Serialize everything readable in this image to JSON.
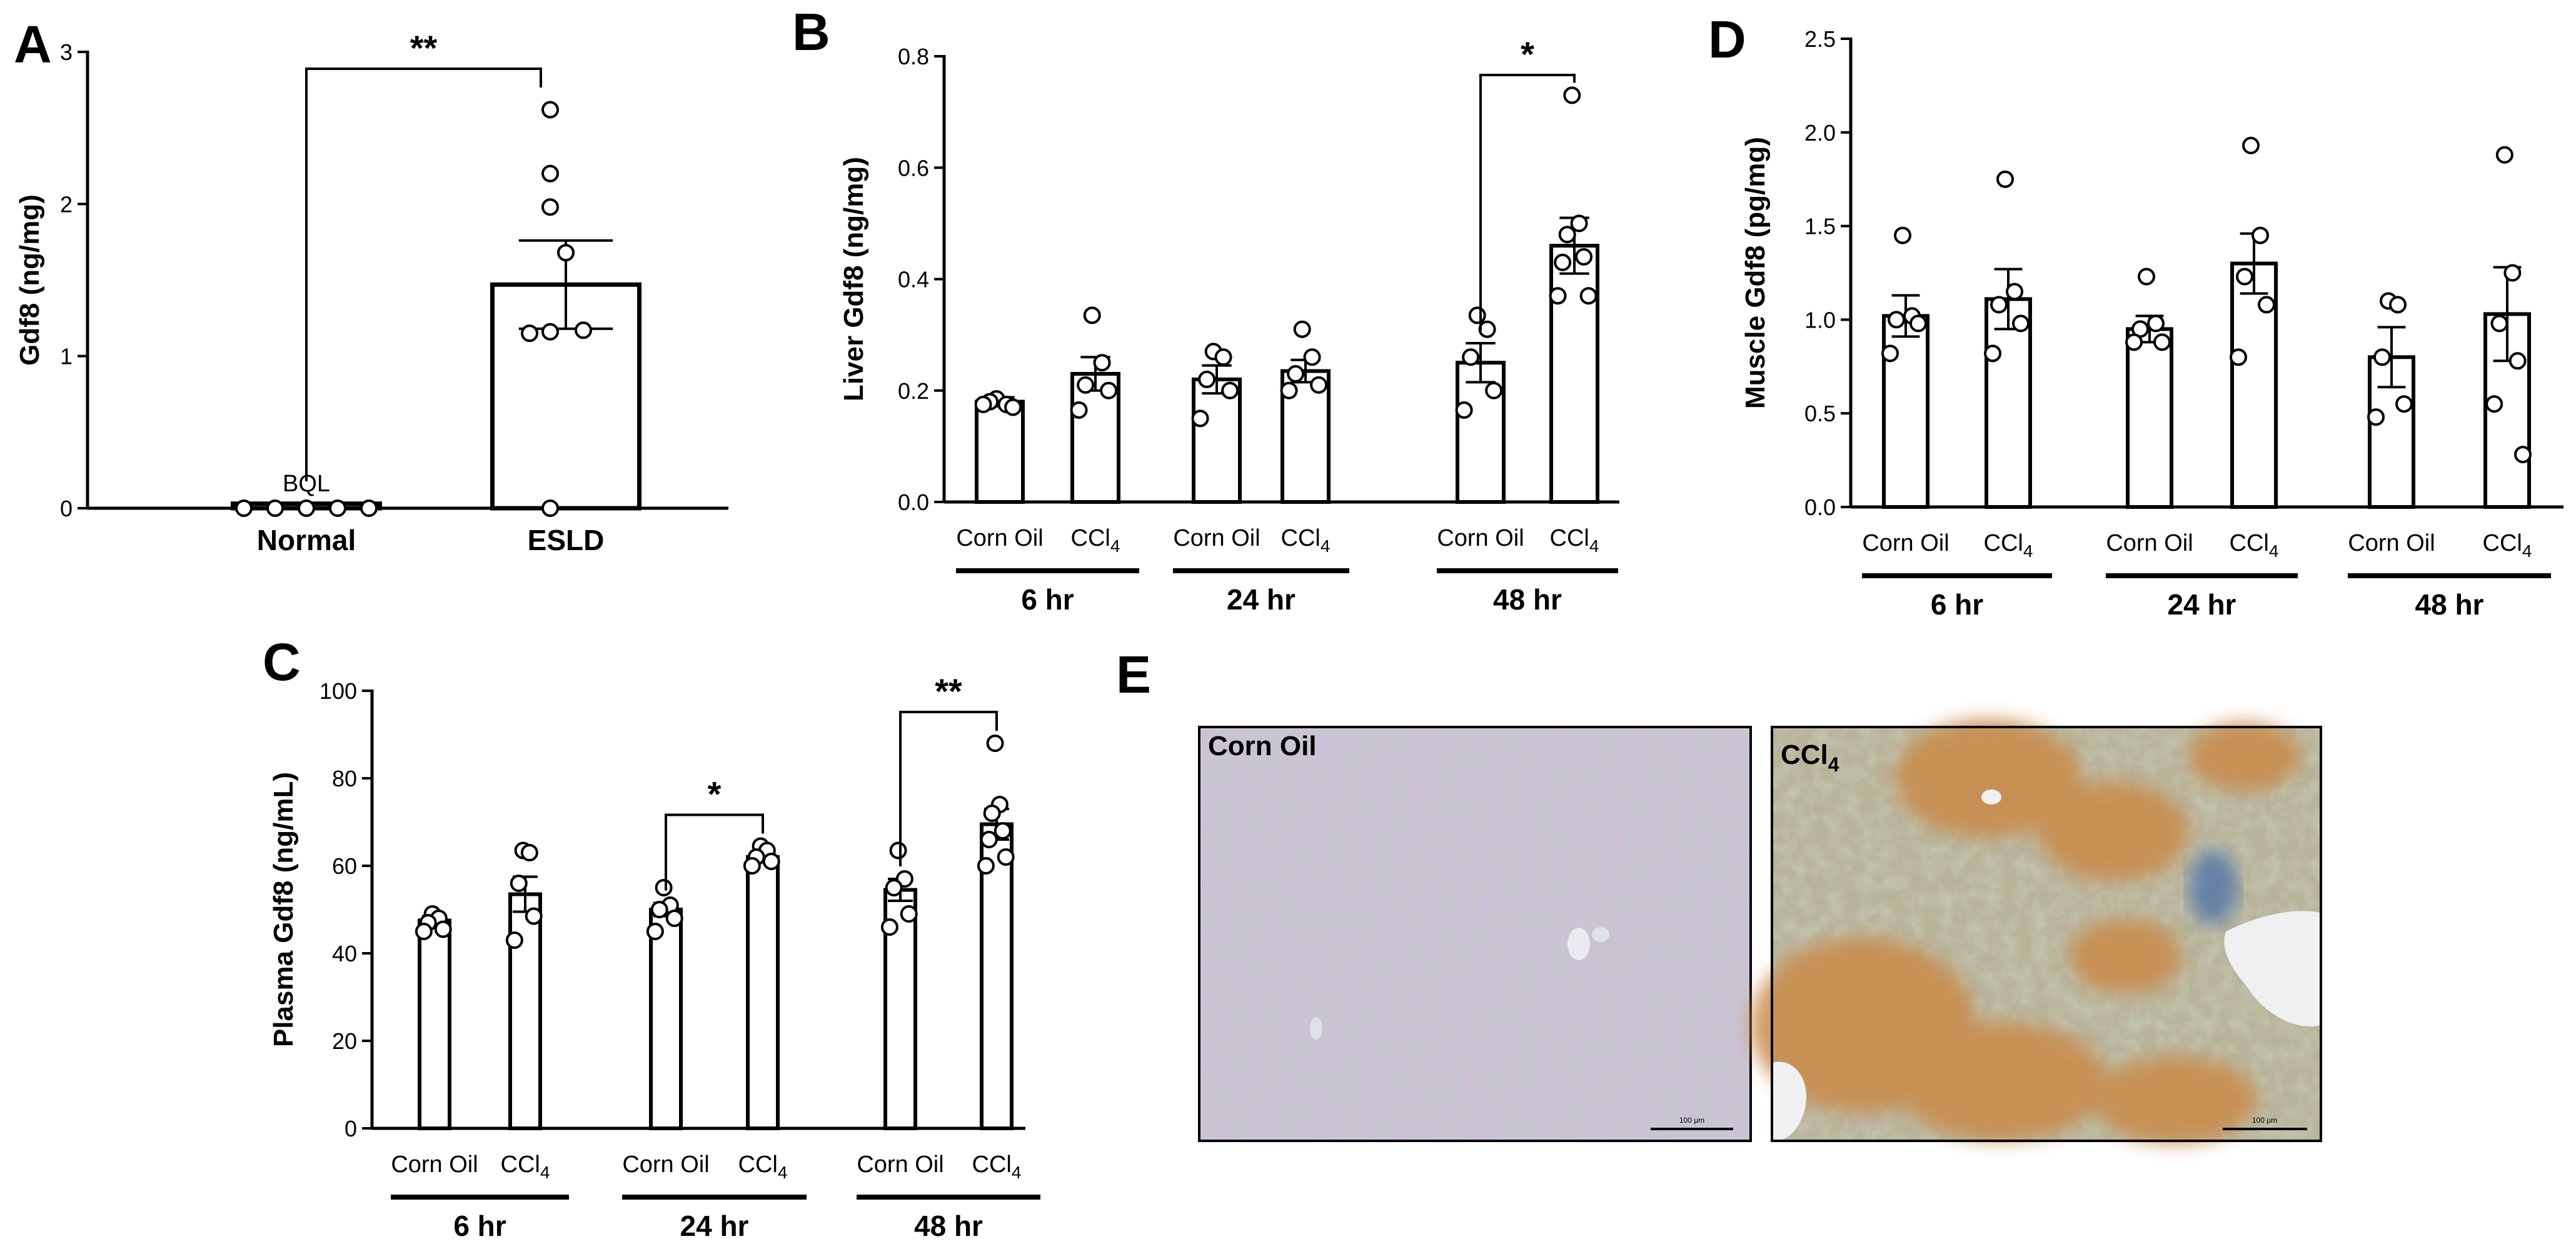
{
  "chart_data": [
    {
      "panel": "A",
      "type": "bar",
      "ylabel": "Gdf8 (ng/mg)",
      "ylim": [
        0,
        3
      ],
      "yticks": [
        0,
        1,
        2,
        3
      ],
      "categories": [
        "Normal",
        "ESLD"
      ],
      "means": [
        0.03,
        1.47
      ],
      "sem": [
        0.0,
        0.29
      ],
      "points": [
        [
          0,
          0,
          0,
          0,
          0
        ],
        [
          2.62,
          2.2,
          1.98,
          1.68,
          1.17,
          1.15,
          1.16,
          0.0
        ]
      ],
      "annotations": [
        {
          "text": "BQL",
          "category": "Normal"
        }
      ],
      "significance": [
        {
          "from": "Normal",
          "to": "ESLD",
          "label": "**"
        }
      ]
    },
    {
      "panel": "B",
      "type": "bar",
      "ylabel": "Liver Gdf8 (ng/mg)",
      "ylim": [
        0,
        0.8
      ],
      "yticks": [
        "0.0",
        "0.2",
        "0.4",
        "0.6",
        "0.8"
      ],
      "groups": [
        {
          "label": "6 hr",
          "bars": [
            {
              "label": "Corn Oil",
              "mean": 0.18,
              "sem": 0.008,
              "points": [
                0.185,
                0.175,
                0.18,
                0.17,
                0.175
              ]
            },
            {
              "label": "CCl4",
              "mean": 0.23,
              "sem": 0.03,
              "points": [
                0.335,
                0.25,
                0.21,
                0.2,
                0.165
              ]
            }
          ]
        },
        {
          "label": "24 hr",
          "bars": [
            {
              "label": "Corn Oil",
              "mean": 0.22,
              "sem": 0.025,
              "points": [
                0.27,
                0.26,
                0.22,
                0.2,
                0.15
              ]
            },
            {
              "label": "CCl4",
              "mean": 0.235,
              "sem": 0.02,
              "points": [
                0.31,
                0.26,
                0.23,
                0.21,
                0.2
              ]
            }
          ]
        },
        {
          "label": "48 hr",
          "bars": [
            {
              "label": "Corn Oil",
              "mean": 0.25,
              "sem": 0.035,
              "points": [
                0.335,
                0.31,
                0.26,
                0.2,
                0.165
              ]
            },
            {
              "label": "CCl4",
              "mean": 0.46,
              "sem": 0.05,
              "points": [
                0.73,
                0.5,
                0.48,
                0.44,
                0.43,
                0.37,
                0.37
              ]
            }
          ]
        }
      ],
      "significance": [
        {
          "group": "48 hr",
          "label": "*"
        }
      ]
    },
    {
      "panel": "C",
      "type": "bar",
      "ylabel": "Plasma Gdf8 (ng/mL)",
      "ylim": [
        0,
        100
      ],
      "yticks": [
        0,
        20,
        40,
        60,
        80,
        100
      ],
      "groups": [
        {
          "label": "6 hr",
          "bars": [
            {
              "label": "Corn Oil",
              "mean": 47.5,
              "sem": 1.0,
              "points": [
                49,
                48,
                47,
                45.5,
                45
              ]
            },
            {
              "label": "CCl4",
              "mean": 53.5,
              "sem": 4.0,
              "points": [
                63.5,
                63,
                56,
                48.5,
                43
              ]
            }
          ]
        },
        {
          "label": "24 hr",
          "bars": [
            {
              "label": "Corn Oil",
              "mean": 50,
              "sem": 1.5,
              "points": [
                55,
                51,
                50,
                48,
                45
              ]
            },
            {
              "label": "CCl4",
              "mean": 62,
              "sem": 1.2,
              "points": [
                64.5,
                63.5,
                62,
                61,
                60
              ]
            }
          ]
        },
        {
          "label": "48 hr",
          "bars": [
            {
              "label": "Corn Oil",
              "mean": 54.5,
              "sem": 2.5,
              "points": [
                63.5,
                57,
                55,
                49,
                46
              ]
            },
            {
              "label": "CCl4",
              "mean": 69.5,
              "sem": 3.5,
              "points": [
                88,
                74,
                72,
                68,
                66,
                62,
                60
              ]
            }
          ]
        }
      ],
      "significance": [
        {
          "group": "24 hr",
          "label": "*"
        },
        {
          "group": "48 hr",
          "label": "**"
        }
      ]
    },
    {
      "panel": "D",
      "type": "bar",
      "ylabel": "Muscle Gdf8 (pg/mg)",
      "ylim": [
        0,
        2.5
      ],
      "yticks": [
        "0.0",
        "0.5",
        "1.0",
        "1.5",
        "2.0",
        "2.5"
      ],
      "groups": [
        {
          "label": "6 hr",
          "bars": [
            {
              "label": "Corn Oil",
              "mean": 1.02,
              "sem": 0.11,
              "points": [
                1.45,
                1.02,
                1.0,
                0.98,
                0.82
              ]
            },
            {
              "label": "CCl4",
              "mean": 1.11,
              "sem": 0.16,
              "points": [
                1.75,
                1.15,
                1.08,
                0.98,
                0.82
              ]
            }
          ]
        },
        {
          "label": "24 hr",
          "bars": [
            {
              "label": "Corn Oil",
              "mean": 0.95,
              "sem": 0.07,
              "points": [
                1.23,
                0.98,
                0.95,
                0.88,
                0.88
              ]
            },
            {
              "label": "CCl4",
              "mean": 1.3,
              "sem": 0.16,
              "points": [
                1.93,
                1.45,
                1.23,
                1.08,
                0.8
              ]
            }
          ]
        },
        {
          "label": "48 hr",
          "bars": [
            {
              "label": "Corn Oil",
              "mean": 0.8,
              "sem": 0.16,
              "points": [
                1.1,
                1.08,
                0.8,
                0.55,
                0.48
              ]
            },
            {
              "label": "CCl4",
              "mean": 1.03,
              "sem": 0.25,
              "points": [
                1.88,
                1.25,
                0.98,
                0.78,
                0.55,
                0.28
              ]
            }
          ]
        }
      ]
    }
  ],
  "panels": {
    "A": {
      "letter": "A"
    },
    "B": {
      "letter": "B"
    },
    "C": {
      "letter": "C"
    },
    "D": {
      "letter": "D"
    },
    "E": {
      "letter": "E",
      "images": [
        {
          "label": "Corn Oil",
          "scale_bar": "100 μm"
        },
        {
          "label": "CCl4",
          "scale_bar": "100 μm"
        }
      ]
    }
  }
}
